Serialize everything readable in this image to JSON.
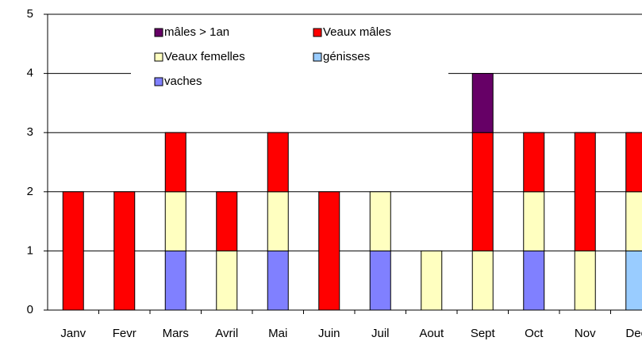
{
  "chart_data": {
    "type": "stacked_bar",
    "categories": [
      "Janv",
      "Fevr",
      "Mars",
      "Avril",
      "Mai",
      "Juin",
      "Juil",
      "Aout",
      "Sept",
      "Oct",
      "Nov",
      "Dec"
    ],
    "series": [
      {
        "name": "mâles > 1an",
        "color": "#660066",
        "values": [
          0,
          0,
          0,
          0,
          0,
          0,
          0,
          0,
          1,
          0,
          0,
          0
        ]
      },
      {
        "name": "Veaux mâles",
        "color": "#ff0000",
        "values": [
          2,
          2,
          1,
          1,
          1,
          2,
          0,
          0,
          2,
          1,
          2,
          1
        ]
      },
      {
        "name": "Veaux femelles",
        "color": "#ffffc0",
        "values": [
          0,
          0,
          1,
          1,
          1,
          0,
          1,
          1,
          1,
          1,
          1,
          1
        ]
      },
      {
        "name": "génisses",
        "color": "#99ccff",
        "values": [
          0,
          0,
          0,
          0,
          0,
          0,
          0,
          0,
          0,
          0,
          0,
          1
        ]
      },
      {
        "name": "vaches",
        "color": "#8080ff",
        "values": [
          0,
          0,
          1,
          0,
          1,
          0,
          1,
          0,
          0,
          1,
          0,
          0
        ]
      }
    ],
    "ylim": [
      0,
      5
    ],
    "yticks": [
      0,
      1,
      2,
      3,
      4,
      5
    ],
    "grid": true
  }
}
